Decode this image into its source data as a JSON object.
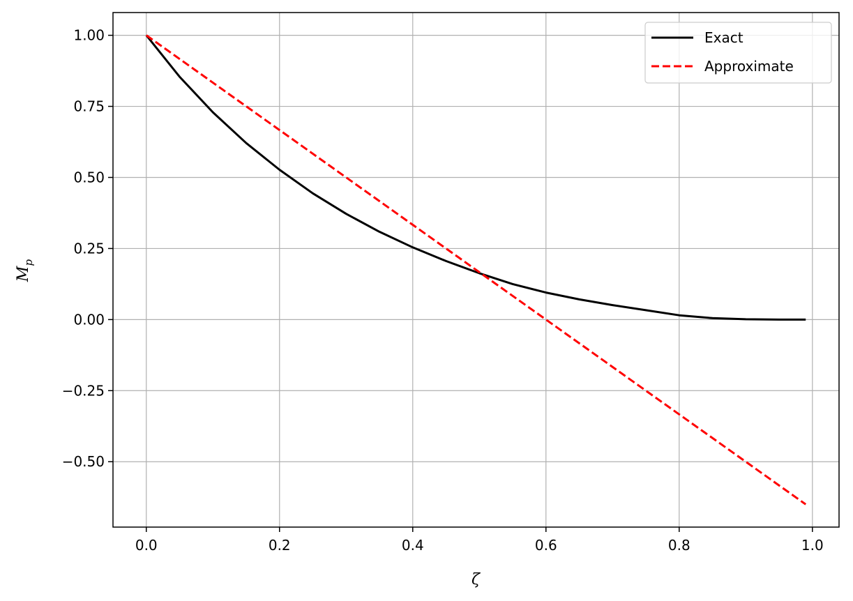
{
  "chart_data": {
    "type": "line",
    "title": "",
    "xlabel": "ζ",
    "ylabel": "M",
    "ylabel_subscript": "p",
    "xlim": [
      -0.05,
      1.04
    ],
    "ylim": [
      -0.73,
      1.08
    ],
    "x_ticks": [
      0.0,
      0.2,
      0.4,
      0.6,
      0.8,
      1.0
    ],
    "x_tick_labels": [
      "0.0",
      "0.2",
      "0.4",
      "0.6",
      "0.8",
      "1.0"
    ],
    "y_ticks": [
      1.0,
      0.75,
      0.5,
      0.25,
      0.0,
      -0.25,
      -0.5
    ],
    "y_tick_labels": [
      "1.00",
      "0.75",
      "0.50",
      "0.25",
      "0.00",
      "−0.25",
      "−0.50"
    ],
    "grid": true,
    "legend_position": "top-right",
    "series": [
      {
        "name": "Exact",
        "color": "#000000",
        "style": "solid",
        "x": [
          0.0,
          0.05,
          0.1,
          0.15,
          0.2,
          0.25,
          0.3,
          0.35,
          0.4,
          0.45,
          0.5,
          0.55,
          0.6,
          0.65,
          0.7,
          0.75,
          0.8,
          0.85,
          0.9,
          0.95,
          0.99
        ],
        "y": [
          1.0,
          0.854,
          0.729,
          0.621,
          0.527,
          0.444,
          0.372,
          0.309,
          0.254,
          0.206,
          0.163,
          0.125,
          0.095,
          0.071,
          0.051,
          0.033,
          0.015,
          0.005,
          0.001,
          0.0,
          0.0
        ]
      },
      {
        "name": "Approximate",
        "color": "#ff0000",
        "style": "dashed",
        "x": [
          0.0,
          0.99
        ],
        "y": [
          1.0,
          -0.65
        ]
      }
    ]
  }
}
